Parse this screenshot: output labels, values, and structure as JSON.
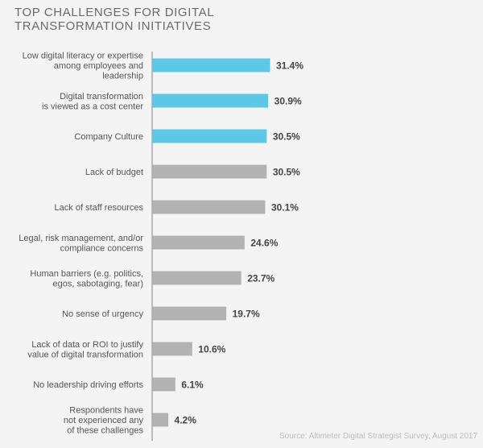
{
  "chart_data": {
    "type": "bar",
    "orientation": "horizontal",
    "title": [
      "TOP CHALLENGES FOR DIGITAL",
      "TRANSFORMATION INITIATIVES"
    ],
    "categories": [
      [
        "Low digital literacy or expertise",
        "among employees and",
        "leadership"
      ],
      [
        "Digital transformation",
        "is viewed as a cost center"
      ],
      [
        "Company Culture"
      ],
      [
        "Lack of budget"
      ],
      [
        "Lack of staff resources"
      ],
      [
        "Legal, risk management, and/or",
        "compliance concerns"
      ],
      [
        "Human barriers (e.g. politics,",
        "egos, sabotaging, fear)"
      ],
      [
        "No sense of urgency"
      ],
      [
        "Lack of data or ROI to justify",
        "value of digital transformation"
      ],
      [
        "No leadership driving efforts"
      ],
      [
        "Respondents have",
        "not experienced any",
        "of these challenges"
      ]
    ],
    "values": [
      31.4,
      30.9,
      30.5,
      30.5,
      30.1,
      24.6,
      23.7,
      19.7,
      10.6,
      6.1,
      4.2
    ],
    "value_labels": [
      "31.4%",
      "30.9%",
      "30.5%",
      "30.5%",
      "30.1%",
      "24.6%",
      "23.7%",
      "19.7%",
      "10.6%",
      "6.1%",
      "4.2%"
    ],
    "highlighted": [
      true,
      true,
      true,
      false,
      false,
      false,
      false,
      false,
      false,
      false,
      false
    ],
    "colors": {
      "highlight": "#5bc8e8",
      "default": "#b3b3b3",
      "axis": "#aaaaaa"
    },
    "grid": false,
    "source": "Source: Altimeter Digital Strategist Survey, August 2017"
  }
}
